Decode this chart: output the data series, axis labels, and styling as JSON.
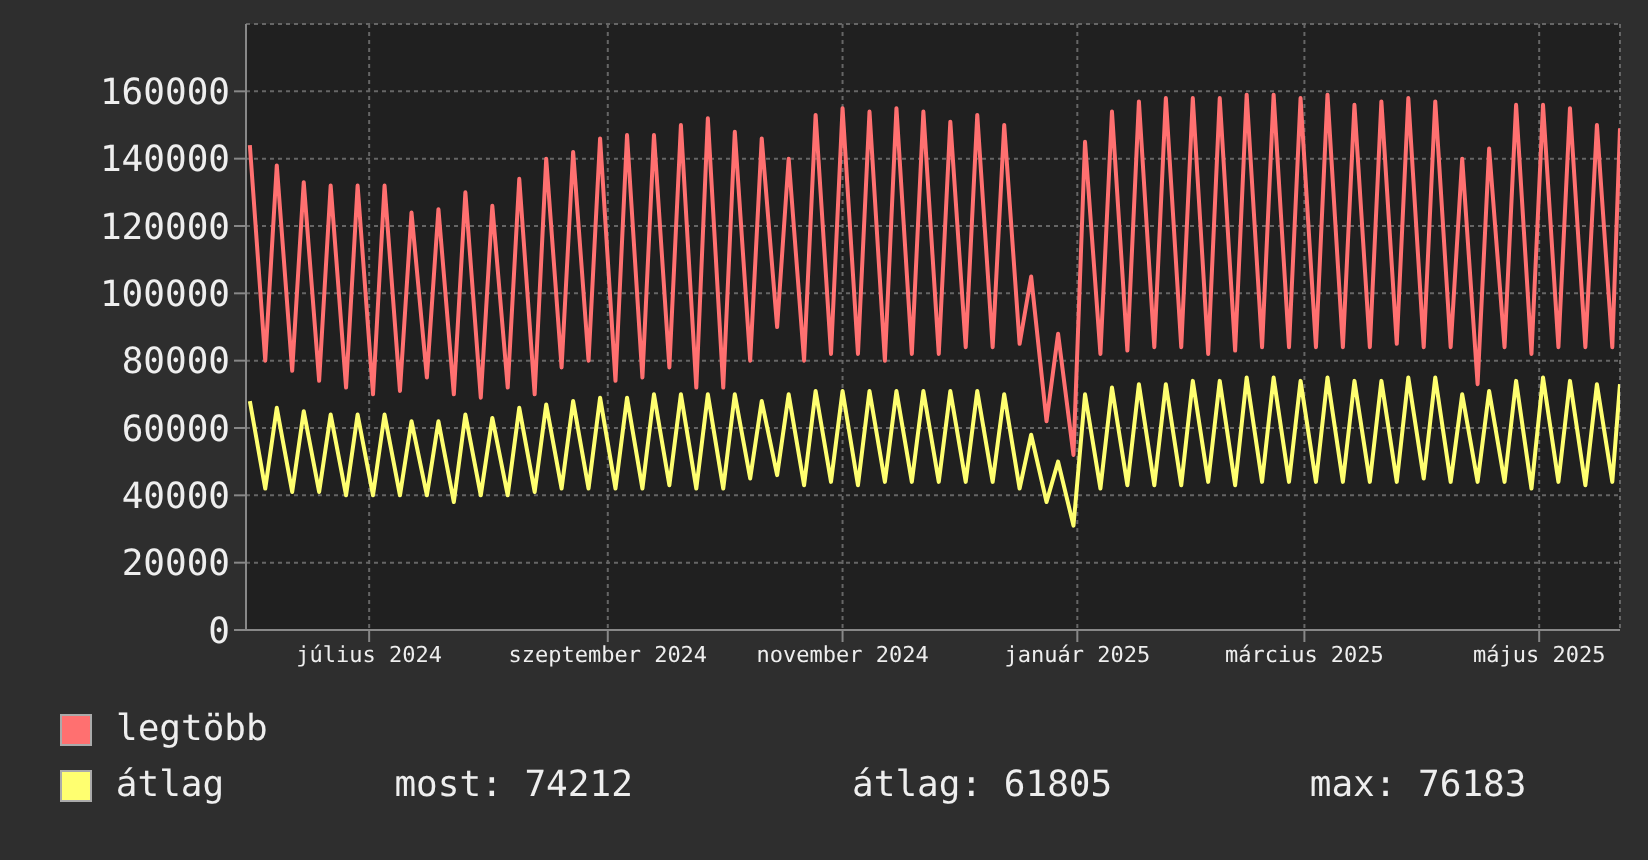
{
  "chart_data": {
    "type": "line",
    "x": [
      "2024-05-31",
      "2024-06-04",
      "2024-06-07",
      "2024-06-11",
      "2024-06-14",
      "2024-06-18",
      "2024-06-21",
      "2024-06-25",
      "2024-06-28",
      "2024-07-02",
      "2024-07-05",
      "2024-07-09",
      "2024-07-12",
      "2024-07-16",
      "2024-07-19",
      "2024-07-23",
      "2024-07-26",
      "2024-07-30",
      "2024-08-02",
      "2024-08-06",
      "2024-08-09",
      "2024-08-13",
      "2024-08-16",
      "2024-08-20",
      "2024-08-23",
      "2024-08-27",
      "2024-08-30",
      "2024-09-03",
      "2024-09-06",
      "2024-09-10",
      "2024-09-13",
      "2024-09-17",
      "2024-09-20",
      "2024-09-24",
      "2024-09-27",
      "2024-10-01",
      "2024-10-04",
      "2024-10-08",
      "2024-10-11",
      "2024-10-15",
      "2024-10-18",
      "2024-10-22",
      "2024-10-25",
      "2024-10-29",
      "2024-11-01",
      "2024-11-05",
      "2024-11-08",
      "2024-11-12",
      "2024-11-15",
      "2024-11-19",
      "2024-11-22",
      "2024-11-26",
      "2024-11-29",
      "2024-12-03",
      "2024-12-06",
      "2024-12-10",
      "2024-12-13",
      "2024-12-17",
      "2024-12-20",
      "2024-12-24",
      "2024-12-27",
      "2024-12-31",
      "2025-01-03",
      "2025-01-07",
      "2025-01-10",
      "2025-01-14",
      "2025-01-17",
      "2025-01-21",
      "2025-01-24",
      "2025-01-28",
      "2025-01-31",
      "2025-02-04",
      "2025-02-07",
      "2025-02-11",
      "2025-02-14",
      "2025-02-18",
      "2025-02-21",
      "2025-02-25",
      "2025-02-28",
      "2025-03-04",
      "2025-03-07",
      "2025-03-11",
      "2025-03-14",
      "2025-03-18",
      "2025-03-21",
      "2025-03-25",
      "2025-03-28",
      "2025-04-01",
      "2025-04-04",
      "2025-04-08",
      "2025-04-11",
      "2025-04-15",
      "2025-04-18",
      "2025-04-22",
      "2025-04-25",
      "2025-04-29",
      "2025-05-02",
      "2025-05-06",
      "2025-05-09",
      "2025-05-13",
      "2025-05-16",
      "2025-05-20",
      "2025-05-22"
    ],
    "series": [
      {
        "name": "legtöbb",
        "color": "#ff7070",
        "values": [
          144000,
          80000,
          138000,
          77000,
          133000,
          74000,
          132000,
          72000,
          132000,
          70000,
          132000,
          71000,
          124000,
          75000,
          125000,
          70000,
          130000,
          69000,
          126000,
          72000,
          134000,
          70000,
          140000,
          78000,
          142000,
          80000,
          146000,
          74000,
          147000,
          75000,
          147000,
          78000,
          150000,
          72000,
          152000,
          72000,
          148000,
          80000,
          146000,
          90000,
          140000,
          80000,
          153000,
          82000,
          155000,
          82000,
          154000,
          80000,
          155000,
          82000,
          154000,
          82000,
          151000,
          84000,
          153000,
          84000,
          150000,
          85000,
          105000,
          62000,
          88000,
          52000,
          145000,
          82000,
          154000,
          83000,
          157000,
          84000,
          158000,
          84000,
          158000,
          82000,
          158000,
          83000,
          159000,
          84000,
          159000,
          84000,
          158000,
          84000,
          159000,
          84000,
          156000,
          84000,
          157000,
          85000,
          158000,
          84000,
          157000,
          84000,
          140000,
          73000,
          143000,
          84000,
          156000,
          82000,
          156000,
          84000,
          155000,
          84000,
          150000,
          84000,
          149000
        ]
      },
      {
        "name": "átlag",
        "color": "#ffff70",
        "values": [
          68000,
          42000,
          66000,
          41000,
          65000,
          41000,
          64000,
          40000,
          64000,
          40000,
          64000,
          40000,
          62000,
          40000,
          62000,
          38000,
          64000,
          40000,
          63000,
          40000,
          66000,
          41000,
          67000,
          42000,
          68000,
          42000,
          69000,
          42000,
          69000,
          42000,
          70000,
          43000,
          70000,
          42000,
          70000,
          42000,
          70000,
          45000,
          68000,
          46000,
          70000,
          43000,
          71000,
          44000,
          71000,
          43000,
          71000,
          44000,
          71000,
          44000,
          71000,
          44000,
          71000,
          44000,
          71000,
          44000,
          70000,
          42000,
          58000,
          38000,
          50000,
          31000,
          70000,
          42000,
          72000,
          43000,
          73000,
          43000,
          73000,
          43000,
          74000,
          44000,
          74000,
          43000,
          75000,
          44000,
          75000,
          44000,
          74000,
          44000,
          75000,
          44000,
          74000,
          44000,
          74000,
          44000,
          75000,
          45000,
          75000,
          44000,
          70000,
          44000,
          71000,
          44000,
          74000,
          42000,
          75000,
          44000,
          74000,
          43000,
          73000,
          44000,
          73000
        ]
      }
    ],
    "xlim": [
      "2024-05-30",
      "2025-05-22"
    ],
    "xticks": [
      {
        "value": "2024-07-01",
        "label": "július 2024"
      },
      {
        "value": "2024-09-01",
        "label": "szeptember 2024"
      },
      {
        "value": "2024-11-01",
        "label": "november 2024"
      },
      {
        "value": "2025-01-01",
        "label": "január 2025"
      },
      {
        "value": "2025-03-01",
        "label": "március 2025"
      },
      {
        "value": "2025-05-01",
        "label": "május 2025"
      }
    ],
    "ylim": [
      0,
      180000
    ],
    "yticks": [
      0,
      20000,
      40000,
      60000,
      80000,
      100000,
      120000,
      140000,
      160000
    ],
    "grid": true,
    "legend": "bottom",
    "annotations": [
      "most: 74212",
      "átlag: 61805",
      "max: 76183"
    ]
  }
}
